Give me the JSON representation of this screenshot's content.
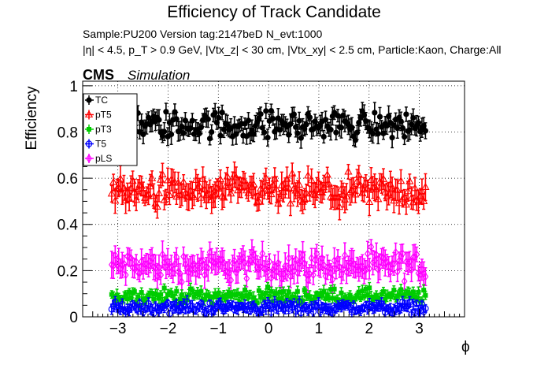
{
  "chart_data": {
    "type": "scatter",
    "title": "Efficiency of Track Candidate",
    "subtitle_line1": "Sample:PU200   Version tag:2147beD  N_evt:1000",
    "subtitle_line2": "|η| < 4.5, p_T > 0.9 GeV, |Vtx_z| < 30 cm, |Vtx_xy| < 2.5 cm, Particle:Kaon, Charge:All",
    "cms_label": "CMS",
    "sim_label": "Simulation",
    "xlabel": "ϕ",
    "ylabel": "Efficiency",
    "xlim": [
      -3.7,
      3.9
    ],
    "ylim": [
      0,
      1.02
    ],
    "xticks": [
      -3,
      -2,
      -1,
      0,
      1,
      2,
      3
    ],
    "xtick_labels": [
      "−3",
      "−2",
      "−1",
      "0",
      "1",
      "2",
      "3"
    ],
    "yticks": [
      0,
      0.2,
      0.4,
      0.6,
      0.8,
      1
    ],
    "ytick_labels": [
      "0",
      "0.2",
      "0.4",
      "0.6",
      "0.8",
      "1"
    ],
    "grid": true,
    "legend_position": "top-left",
    "series": [
      {
        "name": "TC",
        "color": "#000000",
        "marker": "filled-circle",
        "approx_mean": 0.83,
        "spread": 0.06,
        "err": 0.035
      },
      {
        "name": "pT5",
        "color": "#ff0000",
        "marker": "open-triangle",
        "approx_mean": 0.54,
        "spread": 0.07,
        "err": 0.045
      },
      {
        "name": "pT3",
        "color": "#00cc00",
        "marker": "filled-square",
        "approx_mean": 0.09,
        "spread": 0.03,
        "err": 0.02
      },
      {
        "name": "T5",
        "color": "#0000ff",
        "marker": "open-circle",
        "approx_mean": 0.04,
        "spread": 0.025,
        "err": 0.02
      },
      {
        "name": "pLS",
        "color": "#ff00ff",
        "marker": "open-diamond",
        "approx_mean": 0.22,
        "spread": 0.06,
        "err": 0.045
      }
    ],
    "x_range": [
      -3.14,
      3.14
    ],
    "n_bins": 180
  }
}
